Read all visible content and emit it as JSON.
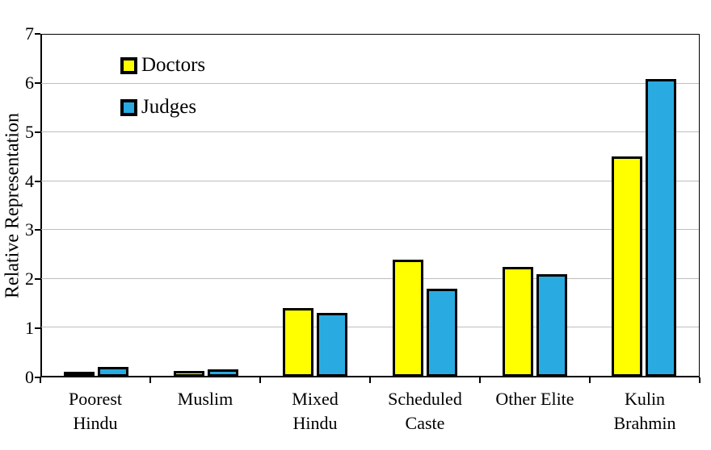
{
  "chart_data": {
    "type": "bar",
    "title": "",
    "xlabel": "",
    "ylabel": "Relative Representation",
    "ylim": [
      0,
      7
    ],
    "yticks": [
      0,
      1,
      2,
      3,
      4,
      5,
      6,
      7
    ],
    "grid": true,
    "legend_position": "top-left-inside",
    "categories": [
      "Poorest Hindu",
      "Muslim",
      "Mixed Hindu",
      "Scheduled Caste",
      "Other Elite",
      "Kulin Brahmin"
    ],
    "category_label_lines": [
      [
        "Poorest",
        "Hindu"
      ],
      [
        "Muslim"
      ],
      [
        "Mixed",
        "Hindu"
      ],
      [
        "Scheduled",
        "Caste"
      ],
      [
        "Other Elite"
      ],
      [
        "Kulin",
        "Brahmin"
      ]
    ],
    "series": [
      {
        "name": "Doctors",
        "color": "#FFFF00",
        "values": [
          0.1,
          0.12,
          1.4,
          2.4,
          2.25,
          4.5
        ]
      },
      {
        "name": "Judges",
        "color": "#29ABE2",
        "values": [
          0.2,
          0.15,
          1.3,
          1.8,
          2.1,
          6.1
        ]
      }
    ],
    "bar_border_color": "#000000",
    "gridline_color": "#BEBEBE",
    "axis_color": "#000000",
    "background_color": "#FFFFFF"
  }
}
